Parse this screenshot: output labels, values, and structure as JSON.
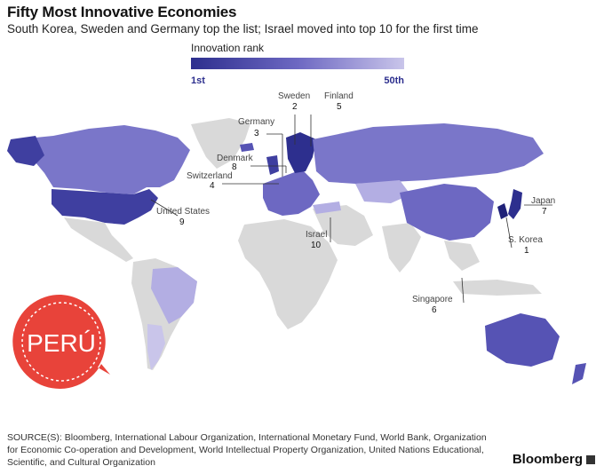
{
  "title": "Fifty Most Innovative Economies",
  "subtitle": "South Korea, Sweden and Germany top the list; Israel moved into top 10 for the first time",
  "legend": {
    "title": "Innovation rank",
    "min_label": "1st",
    "max_label": "50th",
    "color_min": "#2d2f8e",
    "color_max": "#c9c5ea"
  },
  "colors": {
    "not_ranked": "#d9d9d9",
    "ocean": "#ffffff"
  },
  "map_labels": [
    {
      "country": "Sweden",
      "rank": "2"
    },
    {
      "country": "Finland",
      "rank": "5"
    },
    {
      "country": "Germany",
      "rank": "3"
    },
    {
      "country": "Denmark",
      "rank": "8"
    },
    {
      "country": "Switzerland",
      "rank": "4"
    },
    {
      "country": "United States",
      "rank": "9"
    },
    {
      "country": "Israel",
      "rank": "10"
    },
    {
      "country": "Japan",
      "rank": "7"
    },
    {
      "country": "S. Korea",
      "rank": "1"
    },
    {
      "country": "Singapore",
      "rank": "6"
    }
  ],
  "stamp": {
    "text": "PERÚ",
    "color": "#e8433a"
  },
  "source": "SOURCE(S): Bloomberg, International Labour Organization, International Monetary Fund, World Bank, Organization for Economic Co-operation and Development, World Intellectual Property Organization, United Nations Educational, Scientific, and Cultural Organization",
  "brand": "Bloomberg"
}
